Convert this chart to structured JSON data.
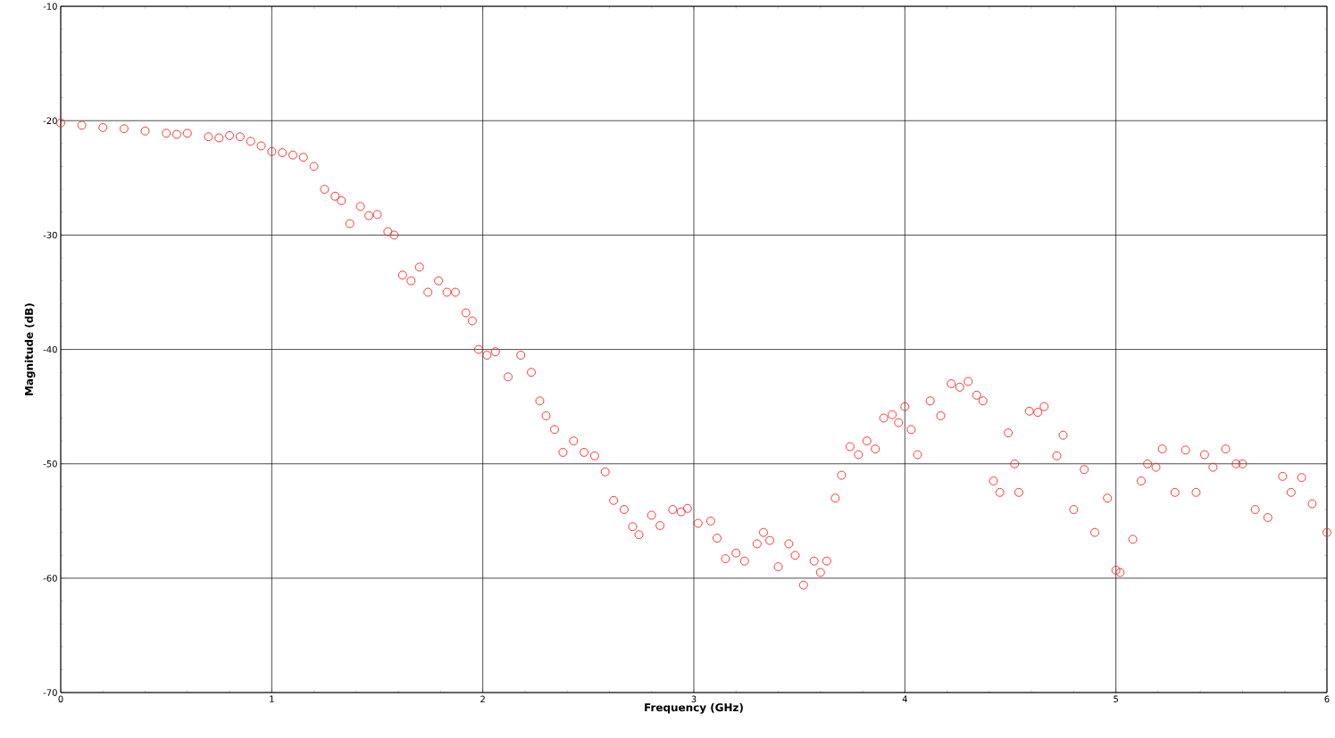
{
  "chart_data": {
    "type": "scatter",
    "xlabel": "Frequency (GHz)",
    "ylabel": "Magnitude (dB)",
    "xlim": [
      0,
      6
    ],
    "ylim": [
      -70,
      -10
    ],
    "xticks": [
      0,
      1,
      2,
      3,
      4,
      5,
      6
    ],
    "yticks": [
      -70,
      -60,
      -50,
      -40,
      -30,
      -20,
      -10
    ],
    "grid": true,
    "marker": "circle",
    "x": [
      0,
      0.1,
      0.2,
      0.3,
      0.4,
      0.5,
      0.55,
      0.6,
      0.7,
      0.75,
      0.8,
      0.85,
      0.9,
      0.95,
      1.0,
      1.05,
      1.1,
      1.15,
      1.2,
      1.25,
      1.3,
      1.33,
      1.37,
      1.42,
      1.46,
      1.5,
      1.55,
      1.58,
      1.62,
      1.66,
      1.7,
      1.74,
      1.79,
      1.83,
      1.87,
      1.92,
      1.95,
      1.98,
      2.02,
      2.06,
      2.12,
      2.18,
      2.23,
      2.27,
      2.3,
      2.34,
      2.38,
      2.43,
      2.48,
      2.53,
      2.58,
      2.62,
      2.67,
      2.71,
      2.74,
      2.8,
      2.84,
      2.9,
      2.94,
      2.97,
      3.02,
      3.08,
      3.11,
      3.15,
      3.2,
      3.24,
      3.3,
      3.33,
      3.36,
      3.4,
      3.45,
      3.48,
      3.52,
      3.57,
      3.6,
      3.63,
      3.67,
      3.7,
      3.74,
      3.78,
      3.82,
      3.86,
      3.9,
      3.94,
      3.97,
      4.0,
      4.03,
      4.06,
      4.12,
      4.17,
      4.22,
      4.26,
      4.3,
      4.34,
      4.37,
      4.42,
      4.45,
      4.49,
      4.52,
      4.54,
      4.59,
      4.63,
      4.66,
      4.72,
      4.75,
      4.8,
      4.85,
      4.9,
      4.96,
      5.0,
      5.02,
      5.08,
      5.12,
      5.15,
      5.19,
      5.22,
      5.28,
      5.33,
      5.38,
      5.42,
      5.46,
      5.52,
      5.57,
      5.6,
      5.66,
      5.72,
      5.79,
      5.83,
      5.88,
      5.93,
      6.0
    ],
    "series": [
      {
        "color": "#ff2020",
        "values": [
          -20.2,
          -20.4,
          -20.6,
          -20.7,
          -20.9,
          -21.1,
          -21.2,
          -21.1,
          -21.4,
          -21.5,
          -21.3,
          -21.4,
          -21.8,
          -22.2,
          -22.7,
          -22.8,
          -23.0,
          -23.2,
          -24.0,
          -26.0,
          -26.6,
          -27.0,
          -29.0,
          -27.5,
          -28.3,
          -28.2,
          -29.7,
          -30.0,
          -33.5,
          -34.0,
          -32.8,
          -35.0,
          -34.0,
          -35.0,
          -35.0,
          -36.8,
          -37.5,
          -40.0,
          -40.5,
          -40.2,
          -42.4,
          -40.5,
          -42.0,
          -44.5,
          -45.8,
          -47.0,
          -49.0,
          -48.0,
          -49.0,
          -49.3,
          -50.7,
          -53.2,
          -54.0,
          -55.5,
          -56.2,
          -54.5,
          -55.4,
          -54.0,
          -54.2,
          -53.9,
          -55.2,
          -55.0,
          -56.5,
          -58.3,
          -57.8,
          -58.5,
          -57.0,
          -56.0,
          -56.7,
          -59.0,
          -57.0,
          -58.0,
          -60.6,
          -58.5,
          -59.5,
          -58.5,
          -53.0,
          -51.0,
          -48.5,
          -49.2,
          -48.0,
          -48.7,
          -46.0,
          -45.7,
          -46.4,
          -45.0,
          -47.0,
          -49.2,
          -44.5,
          -45.8,
          -43.0,
          -43.3,
          -42.8,
          -44.0,
          -44.5,
          -51.5,
          -52.5,
          -47.3,
          -50.0,
          -52.5,
          -45.4,
          -45.5,
          -45.0,
          -49.3,
          -47.5,
          -54.0,
          -50.5,
          -56.0,
          -53.0,
          -59.3,
          -59.5,
          -56.6,
          -51.5,
          -50.0,
          -50.3,
          -48.7,
          -52.5,
          -48.8,
          -52.5,
          -49.2,
          -50.3,
          -48.7,
          -50.0,
          -50.0,
          -54.0,
          -54.7,
          -51.1,
          -52.5,
          -51.2,
          -53.5,
          -56.0
        ]
      }
    ]
  }
}
